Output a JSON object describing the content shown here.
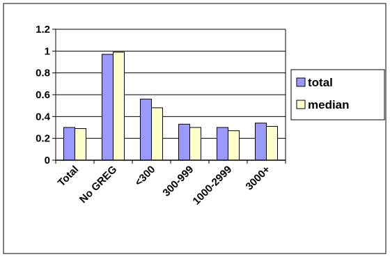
{
  "chart_data": {
    "type": "bar",
    "categories": [
      "Total",
      "No GREG",
      "<300",
      "300-999",
      "1000-2999",
      "3000+"
    ],
    "series": [
      {
        "name": "total",
        "values": [
          0.3,
          0.97,
          0.56,
          0.33,
          0.3,
          0.34
        ],
        "color": "#9999ff"
      },
      {
        "name": "median",
        "values": [
          0.29,
          0.99,
          0.48,
          0.3,
          0.27,
          0.31
        ],
        "color": "#ffffcc"
      }
    ],
    "ylim": [
      0,
      1.2
    ],
    "yticks": [
      "0",
      "0.2",
      "0.4",
      "0.6",
      "0.8",
      "1",
      "1.2"
    ],
    "grid": true,
    "legend_position": "right"
  }
}
